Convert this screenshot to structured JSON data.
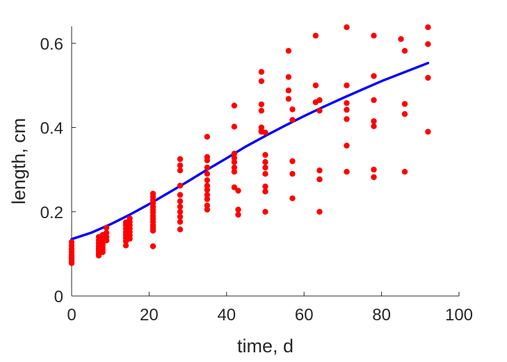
{
  "chart_data": {
    "type": "scatter",
    "xlabel": "time, d",
    "ylabel": "length, cm",
    "xlim": [
      0,
      100
    ],
    "ylim": [
      0,
      0.64
    ],
    "xticks": [
      0,
      20,
      40,
      60,
      80,
      100
    ],
    "xtick_labels": [
      "0",
      "20",
      "40",
      "60",
      "80",
      "100"
    ],
    "yticks": [
      0,
      0.2,
      0.4,
      0.6
    ],
    "ytick_labels": [
      "0",
      "0.2",
      "0.4",
      "0.6"
    ],
    "grid": false,
    "colors": {
      "points": "#ff0000",
      "fit": "#0000ff",
      "axis": "#262626"
    },
    "series": [
      {
        "kind": "points",
        "x": [
          0,
          0,
          0,
          0,
          0,
          0,
          0,
          0,
          0,
          7,
          7,
          7,
          7,
          7,
          7,
          7,
          7,
          8,
          8,
          8,
          8,
          8,
          8,
          8,
          9,
          9,
          9,
          9,
          14,
          14,
          14,
          14,
          14,
          14,
          14,
          14,
          15,
          15,
          15,
          15,
          15,
          15,
          15,
          21,
          21,
          21,
          21,
          21,
          21,
          21,
          21,
          21,
          21,
          21,
          21,
          21,
          21,
          28,
          28,
          28,
          28,
          28,
          28,
          28,
          28,
          28,
          28,
          28,
          35,
          35,
          35,
          35,
          35,
          35,
          35,
          35,
          35,
          35,
          35,
          35,
          42,
          42,
          42,
          42,
          42,
          42,
          42,
          42,
          43,
          43,
          43,
          49,
          49,
          49,
          49,
          49,
          49,
          49,
          50,
          50,
          50,
          50,
          50,
          50,
          50,
          50,
          56,
          56,
          56,
          56,
          57,
          57,
          57,
          57,
          57,
          63,
          63,
          63,
          64,
          64,
          64,
          64,
          64,
          71,
          71,
          71,
          71,
          71,
          71,
          71,
          78,
          78,
          78,
          78,
          78,
          78,
          78,
          85,
          86,
          86,
          86,
          86,
          92,
          92,
          92,
          92
        ],
        "y": [
          0.128,
          0.12,
          0.112,
          0.105,
          0.098,
          0.092,
          0.088,
          0.082,
          0.078,
          0.14,
          0.132,
          0.125,
          0.118,
          0.112,
          0.106,
          0.1,
          0.096,
          0.145,
          0.138,
          0.13,
          0.122,
          0.116,
          0.11,
          0.104,
          0.162,
          0.15,
          0.14,
          0.132,
          0.175,
          0.168,
          0.16,
          0.152,
          0.145,
          0.138,
          0.13,
          0.12,
          0.184,
          0.176,
          0.168,
          0.16,
          0.152,
          0.144,
          0.136,
          0.243,
          0.235,
          0.228,
          0.22,
          0.212,
          0.205,
          0.198,
          0.19,
          0.183,
          0.176,
          0.168,
          0.162,
          0.155,
          0.118,
          0.325,
          0.31,
          0.298,
          0.262,
          0.24,
          0.225,
          0.212,
          0.2,
          0.188,
          0.176,
          0.158,
          0.378,
          0.33,
          0.322,
          0.305,
          0.29,
          0.275,
          0.262,
          0.252,
          0.24,
          0.23,
          0.215,
          0.205,
          0.452,
          0.402,
          0.338,
          0.328,
          0.318,
          0.305,
          0.295,
          0.258,
          0.25,
          0.205,
          0.193,
          0.532,
          0.51,
          0.455,
          0.44,
          0.4,
          0.392,
          0.39,
          0.388,
          0.335,
          0.318,
          0.305,
          0.29,
          0.26,
          0.248,
          0.2,
          0.582,
          0.52,
          0.488,
          0.468,
          0.443,
          0.418,
          0.32,
          0.29,
          0.232,
          0.618,
          0.5,
          0.46,
          0.465,
          0.44,
          0.298,
          0.277,
          0.2,
          0.638,
          0.5,
          0.458,
          0.442,
          0.42,
          0.357,
          0.295,
          0.618,
          0.522,
          0.465,
          0.415,
          0.403,
          0.3,
          0.282,
          0.61,
          0.582,
          0.456,
          0.432,
          0.295,
          0.638,
          0.598,
          0.518,
          0.39
        ]
      },
      {
        "kind": "line",
        "x": [
          0,
          5,
          10,
          15,
          20,
          25,
          30,
          35,
          40,
          45,
          50,
          55,
          60,
          65,
          70,
          75,
          80,
          85,
          92
        ],
        "y": [
          0.135,
          0.15,
          0.17,
          0.193,
          0.218,
          0.245,
          0.272,
          0.3,
          0.327,
          0.355,
          0.38,
          0.404,
          0.427,
          0.449,
          0.47,
          0.49,
          0.51,
          0.528,
          0.553
        ]
      }
    ]
  }
}
